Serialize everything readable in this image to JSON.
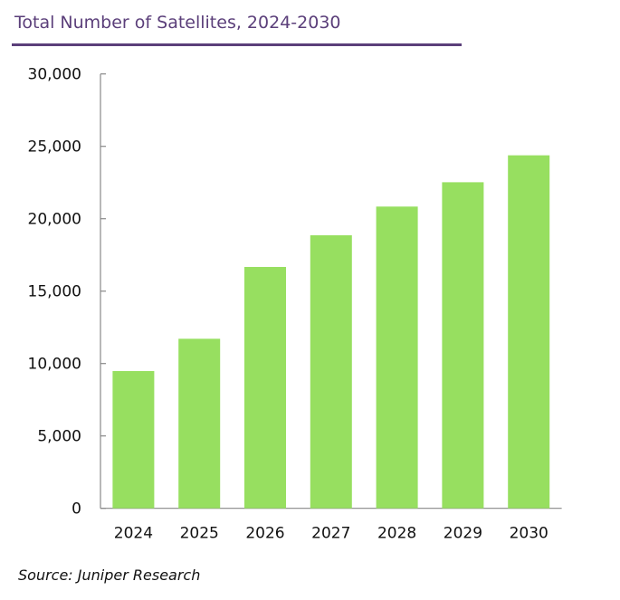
{
  "chart_data": {
    "type": "bar",
    "title": "Total Number of Satellites, 2024-2030",
    "categories": [
      "2024",
      "2025",
      "2026",
      "2027",
      "2028",
      "2029",
      "2030"
    ],
    "values": [
      9480,
      11710,
      16670,
      18860,
      20840,
      22520,
      24380
    ],
    "ylim": [
      0,
      30000
    ],
    "yticks": [
      "0",
      "5,000",
      "10,000",
      "15,000",
      "20,000",
      "25,000",
      "30,000"
    ],
    "xlabel": "",
    "ylabel": "",
    "grid": false,
    "bar_color": "#97df60",
    "title_color": "#5b3f7a"
  },
  "source": "Source: Juniper Research"
}
